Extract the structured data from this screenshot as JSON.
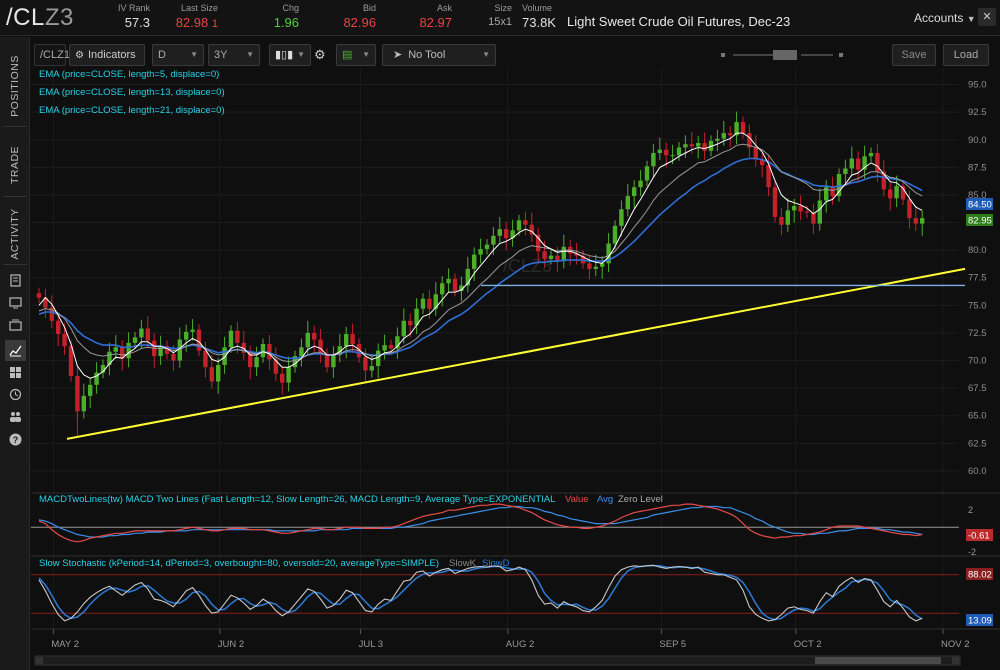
{
  "header": {
    "symbol_main": "/CL",
    "symbol_suffix": "Z3",
    "iv_rank": {
      "label": "IV Rank",
      "value": "57.3"
    },
    "last_size": {
      "label": "Last Size",
      "value": "82.98",
      "sub": "1"
    },
    "chg": {
      "label": "Chg",
      "value": "1.96"
    },
    "bid": {
      "label": "Bid",
      "value": "82.96"
    },
    "ask": {
      "label": "Ask",
      "value": "82.97"
    },
    "size": {
      "label": "Size",
      "value": "15x1"
    },
    "volume": {
      "label": "Volume",
      "value": "73.8K"
    },
    "description": "Light Sweet Crude Oil Futures, Dec-23",
    "accounts": "Accounts"
  },
  "sidebar": {
    "tabs": [
      "POSITIONS",
      "TRADE",
      "ACTIVITY"
    ]
  },
  "toolbar": {
    "symbol": "/CLZ1",
    "indicators": "Indicators",
    "interval": "D",
    "range": "3Y",
    "tool": "No Tool",
    "save": "Save",
    "load": "Load"
  },
  "price_panel": {
    "studies": [
      "EMA (price=CLOSE, length=5, displace=0)",
      "EMA (price=CLOSE, length=13, displace=0)",
      "EMA (price=CLOSE, length=21, displace=0)"
    ],
    "watermark": "/CLZ3",
    "price_labels": [
      "84.50",
      "82.95"
    ]
  },
  "macd_panel": {
    "title": "MACDTwoLines(tw) MACD Two Lines (Fast Length=12, Slow Length=26, MACD Length=9, Average Type=EXPONENTIAL",
    "legend": [
      "Value",
      "Avg",
      "Zero Level"
    ],
    "ticks": [
      "2",
      "-2"
    ],
    "label": "-0.61"
  },
  "stoch_panel": {
    "title": "Slow Stochastic (kPeriod=14, dPeriod=3, overbought=80, oversold=20, averageType=SIMPLE)",
    "legend": [
      "SlowK",
      "SlowD"
    ],
    "labels": [
      "88.02",
      "13.09"
    ]
  },
  "colors": {
    "up": "#4caf2a",
    "down": "#c4212b",
    "ema5": "#ffffff",
    "ema13": "#9a9a9a",
    "ema21": "#2f6fd8",
    "trend": "#ffff33",
    "support": "#7db0e6",
    "macd_value": "#e84a4a",
    "macd_avg": "#3a8fe8",
    "slowk": "#c8c8c8",
    "slowd": "#2b7bd6"
  },
  "chart_data": {
    "type": "candlestick",
    "y_ticks": [
      95.0,
      92.5,
      90.0,
      87.5,
      85.0,
      82.5,
      80.0,
      77.5,
      75.0,
      72.5,
      70.0,
      67.5,
      65.0,
      62.5,
      60.0
    ],
    "ylim": [
      58.0,
      96.5
    ],
    "x_tick_labels": [
      "MAY 2",
      "JUN 2",
      "JUL 3",
      "AUG 2",
      "SEP 5",
      "OCT 2",
      "NOV 2"
    ],
    "series": [
      {
        "name": "EMA5"
      },
      {
        "name": "EMA13"
      },
      {
        "name": "EMA21"
      }
    ],
    "closes": [
      75.7,
      74.8,
      73.6,
      72.4,
      71.3,
      68.6,
      65.4,
      66.8,
      67.8,
      68.9,
      69.6,
      70.8,
      71.2,
      70.2,
      71.6,
      72.1,
      72.9,
      71.8,
      70.4,
      71.3,
      70.6,
      70.0,
      71.9,
      72.6,
      72.8,
      70.9,
      69.4,
      68.1,
      69.6,
      71.2,
      72.7,
      71.6,
      70.7,
      69.4,
      70.3,
      71.5,
      70.1,
      68.8,
      68.0,
      69.4,
      70.4,
      71.2,
      72.5,
      71.9,
      70.6,
      69.4,
      70.5,
      71.3,
      72.4,
      71.5,
      70.3,
      69.1,
      69.5,
      70.9,
      71.4,
      71.1,
      72.2,
      73.6,
      73.2,
      74.7,
      75.6,
      74.7,
      76.0,
      77.0,
      77.4,
      76.3,
      76.8,
      78.3,
      79.6,
      80.1,
      80.5,
      81.3,
      81.9,
      81.1,
      81.8,
      82.7,
      82.3,
      81.4,
      79.9,
      79.2,
      79.5,
      79.0,
      80.3,
      79.7,
      79.5,
      78.8,
      78.3,
      78.5,
      78.8,
      80.6,
      82.2,
      83.7,
      84.9,
      85.7,
      86.3,
      87.6,
      88.8,
      89.1,
      88.6,
      88.6,
      89.3,
      89.6,
      89.4,
      89.7,
      89.0,
      89.9,
      90.1,
      90.6,
      90.4,
      91.6,
      90.6,
      89.3,
      88.2,
      87.7,
      85.7,
      83.0,
      82.3,
      83.6,
      84.0,
      83.5,
      83.4,
      82.4,
      84.5,
      85.7,
      84.9,
      86.9,
      87.4,
      88.3,
      87.3,
      88.5,
      88.8,
      87.1,
      85.5,
      84.7,
      85.8,
      84.6,
      82.9,
      82.4,
      82.9
    ],
    "ema5": [
      75.0,
      75.7,
      75.1,
      74.1,
      73.0,
      71.5,
      69.5,
      68.7,
      68.4,
      68.6,
      69.0,
      69.7,
      70.3,
      70.2,
      70.7,
      71.1,
      71.7,
      71.7,
      71.3,
      71.3,
      71.1,
      70.7,
      71.1,
      71.6,
      72.0,
      71.7,
      71.0,
      70.1,
      69.9,
      70.3,
      71.1,
      71.3,
      71.1,
      70.5,
      70.5,
      70.8,
      70.6,
      70.0,
      69.4,
      69.4,
      69.7,
      70.2,
      71.0,
      71.3,
      71.1,
      70.5,
      70.5,
      70.8,
      71.3,
      71.4,
      71.0,
      70.4,
      70.1,
      70.3,
      70.7,
      70.8,
      71.3,
      72.0,
      72.4,
      73.2,
      74.0,
      74.2,
      74.8,
      75.5,
      76.2,
      76.2,
      76.4,
      77.0,
      77.9,
      78.6,
      79.3,
      80.0,
      80.6,
      80.8,
      81.1,
      81.6,
      81.9,
      81.7,
      81.1,
      80.4,
      80.1,
      79.8,
      79.9,
      79.9,
      79.7,
      79.4,
      79.1,
      78.9,
      78.8,
      79.4,
      80.3,
      81.5,
      82.6,
      83.7,
      84.6,
      85.6,
      86.6,
      87.5,
      87.8,
      88.1,
      88.5,
      88.8,
      89.1,
      89.3,
      89.2,
      89.4,
      89.6,
      89.9,
      90.1,
      90.6,
      90.6,
      90.2,
      89.5,
      88.9,
      87.8,
      86.3,
      85.0,
      84.5,
      84.3,
      84.1,
      83.8,
      83.3,
      83.7,
      84.4,
      84.6,
      85.3,
      86.0,
      86.8,
      87.0,
      87.5,
      87.9,
      87.6,
      86.9,
      86.2,
      86.1,
      85.6,
      84.7,
      83.9,
      83.6
    ],
    "ema13": [
      74.5,
      74.7,
      74.6,
      74.3,
      73.8,
      72.9,
      71.8,
      71.2,
      70.7,
      70.5,
      70.4,
      70.5,
      70.6,
      70.5,
      70.6,
      70.8,
      71.1,
      71.2,
      71.1,
      71.1,
      71.1,
      70.9,
      71.0,
      71.3,
      71.5,
      71.4,
      71.1,
      70.7,
      70.5,
      70.6,
      70.9,
      71.0,
      70.9,
      70.7,
      70.6,
      70.8,
      70.7,
      70.3,
      70.0,
      69.9,
      70.0,
      70.2,
      70.5,
      70.7,
      70.7,
      70.5,
      70.5,
      70.6,
      70.9,
      71.0,
      70.9,
      70.6,
      70.4,
      70.5,
      70.6,
      70.7,
      70.9,
      71.3,
      71.6,
      72.0,
      72.6,
      72.9,
      73.4,
      74.0,
      74.6,
      74.9,
      75.2,
      75.7,
      76.3,
      76.9,
      77.4,
      78.0,
      78.6,
      79.0,
      79.4,
      79.9,
      80.2,
      80.4,
      80.3,
      80.2,
      80.1,
      79.9,
      80.0,
      80.0,
      79.9,
      79.7,
      79.5,
      79.4,
      79.3,
      79.5,
      79.9,
      80.6,
      81.3,
      82.1,
      82.8,
      83.6,
      84.5,
      85.2,
      85.7,
      86.2,
      86.7,
      87.1,
      87.5,
      87.9,
      88.0,
      88.3,
      88.6,
      88.9,
      89.1,
      89.5,
      89.6,
      89.5,
      89.3,
      89.1,
      88.6,
      87.8,
      87.1,
      86.8,
      86.6,
      86.3,
      86.0,
      85.5,
      85.4,
      85.5,
      85.4,
      85.6,
      85.9,
      86.3,
      86.5,
      86.8,
      87.1,
      87.1,
      86.9,
      86.6,
      86.5,
      86.2,
      85.7,
      85.2,
      84.9
    ],
    "ema21": [
      74.2,
      74.4,
      74.4,
      74.2,
      73.9,
      73.4,
      72.7,
      72.2,
      71.9,
      71.6,
      71.4,
      71.4,
      71.4,
      71.2,
      71.2,
      71.3,
      71.4,
      71.4,
      71.3,
      71.3,
      71.2,
      71.1,
      71.1,
      71.3,
      71.4,
      71.3,
      71.1,
      70.9,
      70.7,
      70.8,
      70.9,
      71.0,
      70.9,
      70.8,
      70.7,
      70.8,
      70.7,
      70.5,
      70.3,
      70.2,
      70.2,
      70.3,
      70.5,
      70.6,
      70.6,
      70.5,
      70.5,
      70.6,
      70.8,
      70.8,
      70.7,
      70.6,
      70.5,
      70.5,
      70.6,
      70.6,
      70.8,
      71.0,
      71.2,
      71.6,
      72.0,
      72.3,
      72.6,
      73.1,
      73.6,
      73.9,
      74.2,
      74.6,
      75.1,
      75.6,
      76.1,
      76.5,
      77.0,
      77.4,
      77.8,
      78.2,
      78.6,
      78.8,
      78.9,
      78.9,
      79.0,
      79.0,
      79.1,
      79.1,
      79.1,
      79.1,
      79.0,
      79.0,
      79.0,
      79.1,
      79.4,
      79.8,
      80.3,
      80.8,
      81.4,
      82.0,
      82.6,
      83.2,
      83.7,
      84.2,
      84.7,
      85.1,
      85.6,
      86.0,
      86.3,
      86.7,
      87.0,
      87.4,
      87.7,
      88.0,
      88.2,
      88.3,
      88.3,
      88.2,
      88.0,
      87.6,
      87.1,
      86.9,
      86.6,
      86.4,
      86.2,
      85.9,
      85.8,
      85.8,
      85.7,
      85.8,
      85.9,
      86.1,
      86.2,
      86.4,
      86.6,
      86.7,
      86.6,
      86.5,
      86.4,
      86.3,
      86.0,
      85.7,
      85.4
    ],
    "trendline": {
      "from": [
        0,
        62.9
      ],
      "to": [
        139,
        78.3
      ]
    },
    "support_level": 76.8,
    "macd_ylim": [
      -2.2,
      2.4
    ],
    "macd_value": [
      0.5,
      0.3,
      -0.2,
      -0.6,
      -0.9,
      -1.1,
      -1.2,
      -1.1,
      -0.9,
      -0.8,
      -0.7,
      -0.6,
      -0.5,
      -0.5,
      -0.4,
      -0.3,
      -0.3,
      -0.3,
      -0.3,
      -0.3,
      -0.3,
      -0.3,
      -0.2,
      -0.1,
      0.0,
      -0.1,
      -0.2,
      -0.3,
      -0.3,
      -0.2,
      -0.1,
      -0.1,
      -0.1,
      -0.2,
      -0.2,
      -0.2,
      -0.3,
      -0.4,
      -0.5,
      -0.5,
      -0.4,
      -0.3,
      -0.2,
      -0.1,
      -0.1,
      -0.2,
      -0.2,
      -0.1,
      0.0,
      0.0,
      0.0,
      -0.1,
      -0.1,
      -0.1,
      0.0,
      0.0,
      0.1,
      0.3,
      0.5,
      0.7,
      0.9,
      1.0,
      1.1,
      1.2,
      1.4,
      1.4,
      1.5,
      1.6,
      1.7,
      1.8,
      1.8,
      1.9,
      1.9,
      1.8,
      1.7,
      1.6,
      1.4,
      1.2,
      0.9,
      0.6,
      0.4,
      0.2,
      0.1,
      0.0,
      0.0,
      -0.1,
      -0.1,
      0.0,
      0.1,
      0.3,
      0.5,
      0.8,
      1.0,
      1.2,
      1.3,
      1.4,
      1.5,
      1.6,
      1.7,
      1.8,
      1.8,
      1.9,
      1.9,
      1.8,
      1.7,
      1.6,
      1.5,
      1.3,
      1.1,
      0.8,
      0.3,
      -0.2,
      -0.5,
      -0.7,
      -0.8,
      -0.9,
      -0.8,
      -0.8,
      -0.7,
      -0.7,
      -0.6,
      -0.5,
      -0.4,
      -0.2,
      0.0,
      0.1,
      0.1,
      0.1,
      0.1,
      0.0,
      -0.1,
      -0.2,
      -0.3,
      -0.4,
      -0.5,
      -0.6,
      -0.6,
      -0.7,
      -0.6
    ],
    "macd_avg": [
      0.6,
      0.5,
      0.3,
      0.0,
      -0.2,
      -0.4,
      -0.6,
      -0.7,
      -0.8,
      -0.8,
      -0.8,
      -0.7,
      -0.7,
      -0.6,
      -0.6,
      -0.5,
      -0.5,
      -0.4,
      -0.4,
      -0.4,
      -0.3,
      -0.3,
      -0.3,
      -0.3,
      -0.2,
      -0.2,
      -0.2,
      -0.2,
      -0.2,
      -0.2,
      -0.2,
      -0.2,
      -0.2,
      -0.2,
      -0.2,
      -0.2,
      -0.2,
      -0.3,
      -0.3,
      -0.3,
      -0.3,
      -0.3,
      -0.3,
      -0.3,
      -0.2,
      -0.2,
      -0.2,
      -0.2,
      -0.2,
      -0.1,
      -0.1,
      -0.1,
      -0.1,
      -0.1,
      -0.1,
      -0.1,
      0.0,
      0.0,
      0.1,
      0.2,
      0.3,
      0.5,
      0.6,
      0.7,
      0.8,
      0.9,
      1.0,
      1.1,
      1.2,
      1.3,
      1.4,
      1.5,
      1.6,
      1.6,
      1.7,
      1.7,
      1.6,
      1.6,
      1.5,
      1.3,
      1.2,
      1.0,
      0.9,
      0.7,
      0.6,
      0.5,
      0.4,
      0.3,
      0.3,
      0.3,
      0.3,
      0.4,
      0.5,
      0.6,
      0.7,
      0.8,
      1.0,
      1.1,
      1.2,
      1.3,
      1.4,
      1.5,
      1.6,
      1.6,
      1.7,
      1.7,
      1.7,
      1.6,
      1.6,
      1.4,
      1.2,
      1.0,
      0.7,
      0.5,
      0.2,
      0.0,
      -0.2,
      -0.4,
      -0.5,
      -0.5,
      -0.6,
      -0.6,
      -0.5,
      -0.5,
      -0.4,
      -0.3,
      -0.3,
      -0.2,
      -0.1,
      -0.1,
      -0.1,
      -0.1,
      -0.2,
      -0.2,
      -0.3,
      -0.4,
      -0.4,
      -0.5,
      -0.6
    ],
    "stoch_ylim": [
      0,
      100
    ],
    "stoch_levels": [
      80,
      20
    ],
    "slowk": [
      72,
      55,
      35,
      18,
      8,
      12,
      22,
      35,
      45,
      52,
      58,
      62,
      55,
      48,
      56,
      64,
      68,
      58,
      42,
      40,
      36,
      30,
      42,
      55,
      60,
      48,
      32,
      20,
      22,
      35,
      48,
      44,
      36,
      26,
      32,
      42,
      36,
      24,
      16,
      22,
      34,
      46,
      58,
      54,
      42,
      28,
      32,
      42,
      56,
      52,
      38,
      24,
      22,
      34,
      42,
      40,
      55,
      70,
      72,
      84,
      86,
      78,
      84,
      88,
      90,
      82,
      86,
      90,
      92,
      93,
      92,
      94,
      93,
      86,
      88,
      92,
      88,
      72,
      48,
      34,
      36,
      28,
      38,
      33,
      30,
      24,
      22,
      30,
      40,
      60,
      78,
      88,
      92,
      94,
      93,
      94,
      95,
      92,
      90,
      92,
      93,
      92,
      90,
      92,
      84,
      82,
      80,
      80,
      76,
      72,
      56,
      30,
      18,
      12,
      8,
      10,
      18,
      28,
      30,
      26,
      24,
      20,
      38,
      52,
      46,
      62,
      70,
      76,
      68,
      74,
      72,
      56,
      38,
      30,
      40,
      28,
      14,
      8,
      12
    ],
    "slowd": [
      75,
      64,
      48,
      30,
      18,
      12,
      14,
      22,
      34,
      44,
      52,
      58,
      59,
      56,
      53,
      56,
      62,
      63,
      56,
      47,
      39,
      36,
      36,
      42,
      52,
      54,
      47,
      34,
      25,
      26,
      35,
      42,
      43,
      35,
      31,
      33,
      37,
      34,
      26,
      21,
      24,
      34,
      46,
      53,
      51,
      42,
      34,
      34,
      43,
      50,
      49,
      38,
      28,
      27,
      33,
      39,
      46,
      56,
      66,
      75,
      81,
      83,
      83,
      84,
      87,
      87,
      86,
      86,
      89,
      91,
      92,
      93,
      93,
      91,
      89,
      89,
      89,
      84,
      70,
      51,
      40,
      33,
      34,
      33,
      34,
      29,
      25,
      25,
      31,
      43,
      59,
      75,
      86,
      91,
      93,
      94,
      94,
      94,
      92,
      91,
      92,
      92,
      91,
      91,
      89,
      86,
      82,
      81,
      79,
      76,
      68,
      53,
      35,
      20,
      13,
      10,
      12,
      19,
      25,
      28,
      27,
      23,
      27,
      37,
      45,
      53,
      59,
      69,
      71,
      73,
      71,
      67,
      55,
      41,
      36,
      33,
      27,
      17,
      11
    ]
  }
}
